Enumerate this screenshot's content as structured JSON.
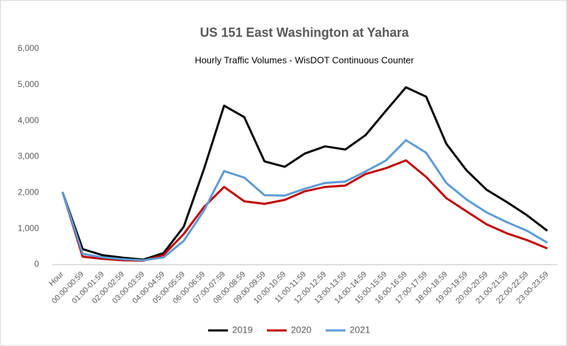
{
  "chart_data": {
    "type": "line",
    "title": "US 151 East Washington  at Yahara",
    "subtitle": "Hourly Traffic Volumes - WisDOT Continuous Counter",
    "categories": [
      "Hour",
      "00:00-00:59",
      "01:00-01:59",
      "02:00-02:59",
      "03:00-03:59",
      "04:00-04:59",
      "05:00-05:59",
      "06:00-06:59",
      "07:00-07:59",
      "08:00-08:59",
      "09:00-09:59",
      "10:00-10:59",
      "11:00-11:59",
      "12:00-12:59",
      "13:00-13:59",
      "14:00-14:59",
      "15:00-15:59",
      "16:00-16:59",
      "17:00-17:59",
      "18:00-18:59",
      "19:00-19:59",
      "20:00-20:59",
      "21:00-21:59",
      "22:00-22:59",
      "23:00-23:59"
    ],
    "series": [
      {
        "name": "2019",
        "color": "#000000",
        "values": [
          2019,
          430,
          260,
          190,
          140,
          320,
          1050,
          2650,
          4420,
          4100,
          2870,
          2720,
          3090,
          3290,
          3200,
          3600,
          4270,
          4930,
          4670,
          3360,
          2620,
          2080,
          1740,
          1370,
          940
        ]
      },
      {
        "name": "2020",
        "color": "#c00000",
        "values": [
          2020,
          220,
          160,
          120,
          110,
          270,
          850,
          1600,
          2160,
          1760,
          1690,
          1800,
          2040,
          2160,
          2200,
          2520,
          2680,
          2900,
          2440,
          1850,
          1480,
          1120,
          870,
          680,
          450
        ]
      },
      {
        "name": "2021",
        "color": "#5b9bd5",
        "values": [
          2021,
          300,
          200,
          150,
          120,
          200,
          660,
          1500,
          2600,
          2420,
          1930,
          1920,
          2110,
          2270,
          2310,
          2590,
          2890,
          3460,
          3110,
          2270,
          1810,
          1450,
          1180,
          940,
          610
        ]
      }
    ],
    "ylim": [
      0,
      6000
    ],
    "yticks": [
      0,
      {
        "value": 1000,
        "label": "1,000"
      },
      {
        "value": 2000,
        "label": "2,000"
      },
      {
        "value": 3000,
        "label": "3,000"
      },
      {
        "value": 4000,
        "label": "4,000"
      },
      {
        "value": 5000,
        "label": "5,000"
      },
      {
        "value": 6000,
        "label": "6,000"
      }
    ],
    "grid": false,
    "legend": "bottom"
  }
}
